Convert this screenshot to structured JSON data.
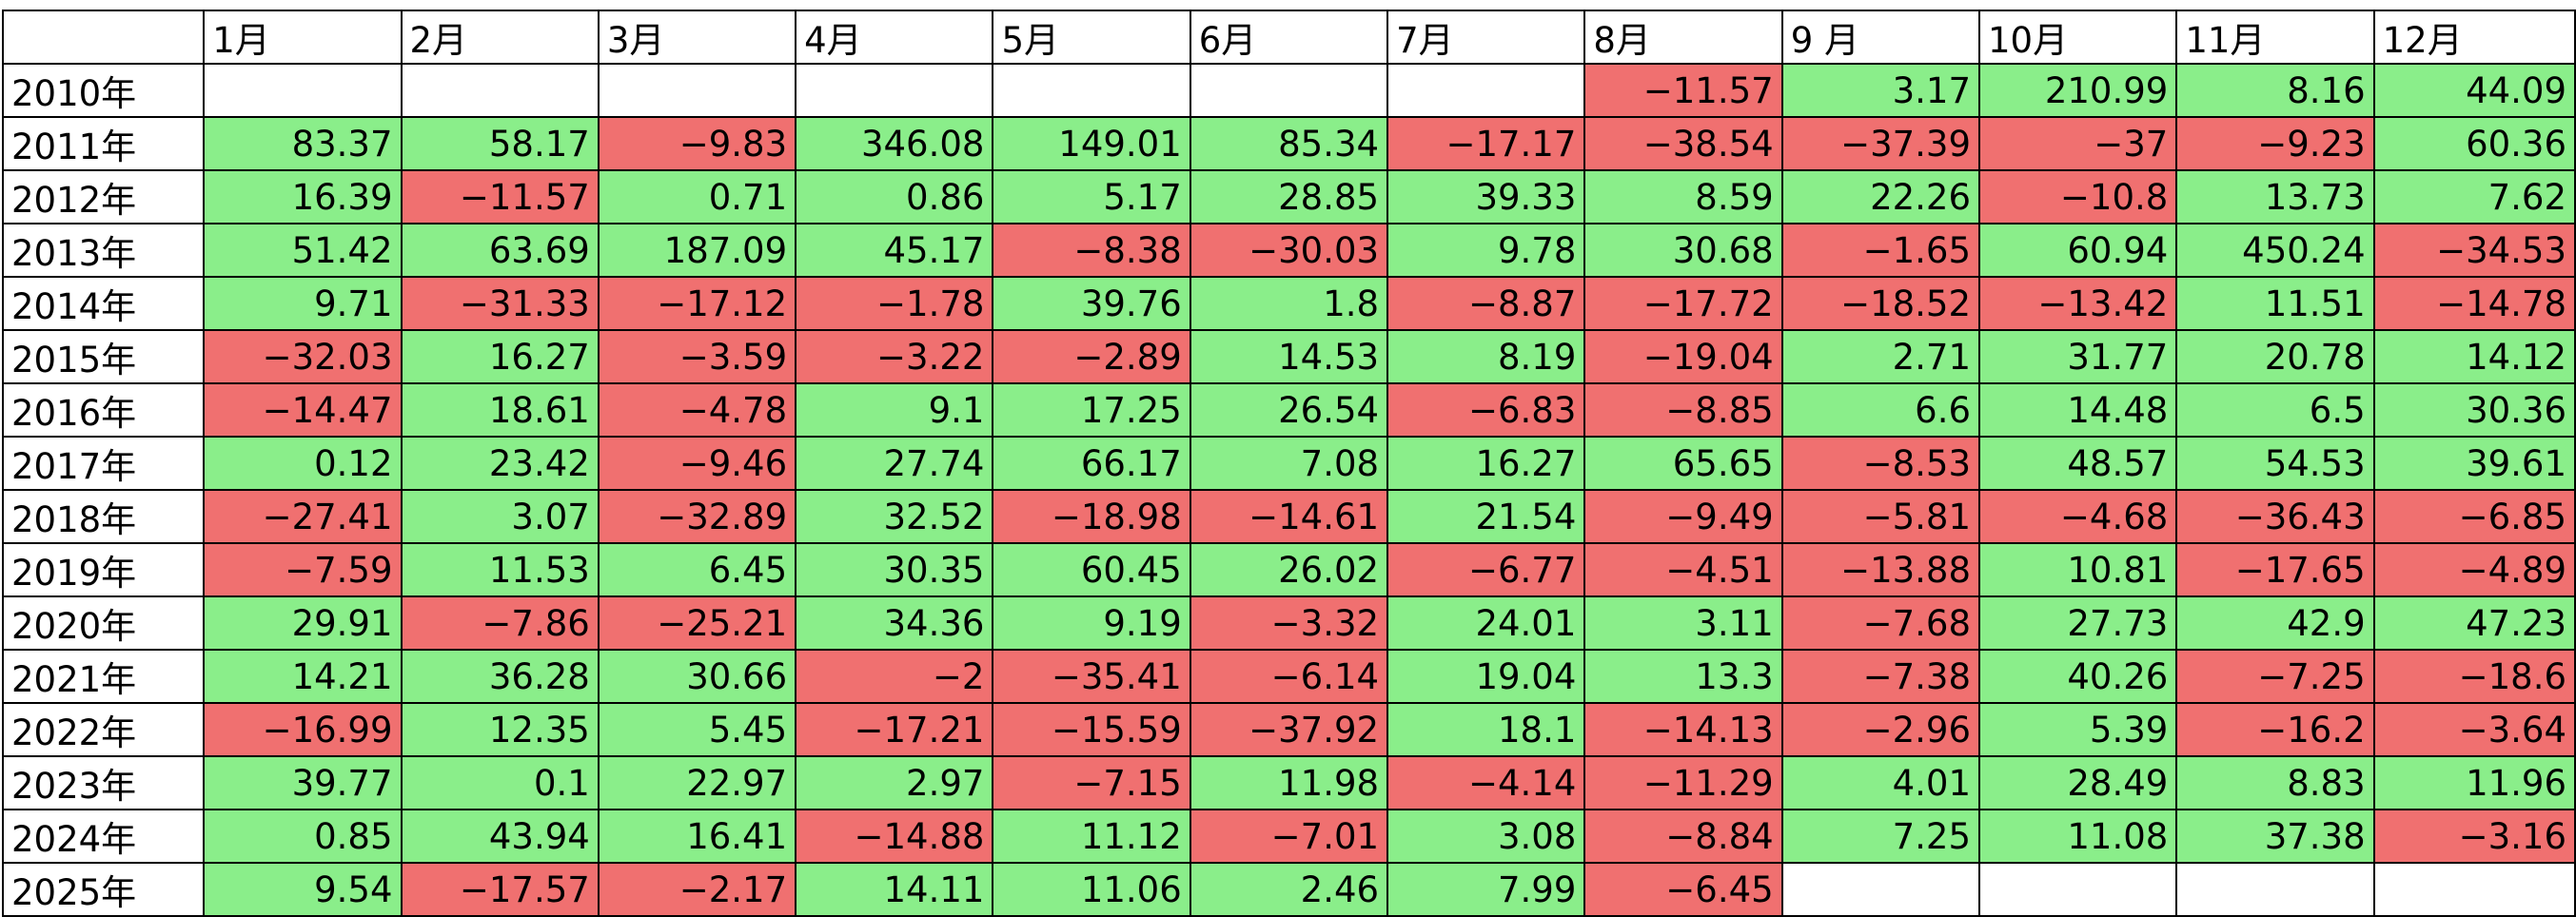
{
  "colors": {
    "positive": "#8aee8a",
    "negative": "#f07070",
    "empty": "#ffffff"
  },
  "chart_data": {
    "type": "heatmap",
    "columns": [
      "1月",
      "2月",
      "3月",
      "4月",
      "5月",
      "6月",
      "7月",
      "8月",
      "9 月",
      "10月",
      "11月",
      "12月"
    ],
    "rows": [
      {
        "label": "2010年",
        "values": [
          null,
          null,
          null,
          null,
          null,
          null,
          null,
          -11.57,
          3.17,
          210.99,
          8.16,
          44.09
        ]
      },
      {
        "label": "2011年",
        "values": [
          83.37,
          58.17,
          -9.83,
          346.08,
          149.01,
          85.34,
          -17.17,
          -38.54,
          -37.39,
          -37,
          -9.23,
          60.36
        ]
      },
      {
        "label": "2012年",
        "values": [
          16.39,
          -11.57,
          0.71,
          0.86,
          5.17,
          28.85,
          39.33,
          8.59,
          22.26,
          -10.8,
          13.73,
          7.62
        ]
      },
      {
        "label": "2013年",
        "values": [
          51.42,
          63.69,
          187.09,
          45.17,
          -8.38,
          -30.03,
          9.78,
          30.68,
          -1.65,
          60.94,
          450.24,
          -34.53
        ]
      },
      {
        "label": "2014年",
        "values": [
          9.71,
          -31.33,
          -17.12,
          -1.78,
          39.76,
          1.8,
          -8.87,
          -17.72,
          -18.52,
          -13.42,
          11.51,
          -14.78
        ]
      },
      {
        "label": "2015年",
        "values": [
          -32.03,
          16.27,
          -3.59,
          -3.22,
          -2.89,
          14.53,
          8.19,
          -19.04,
          2.71,
          31.77,
          20.78,
          14.12
        ]
      },
      {
        "label": "2016年",
        "values": [
          -14.47,
          18.61,
          -4.78,
          9.1,
          17.25,
          26.54,
          -6.83,
          -8.85,
          6.6,
          14.48,
          6.5,
          30.36
        ]
      },
      {
        "label": "2017年",
        "values": [
          0.12,
          23.42,
          -9.46,
          27.74,
          66.17,
          7.08,
          16.27,
          65.65,
          -8.53,
          48.57,
          54.53,
          39.61
        ]
      },
      {
        "label": "2018年",
        "values": [
          -27.41,
          3.07,
          -32.89,
          32.52,
          -18.98,
          -14.61,
          21.54,
          -9.49,
          -5.81,
          -4.68,
          -36.43,
          -6.85
        ]
      },
      {
        "label": "2019年",
        "values": [
          -7.59,
          11.53,
          6.45,
          30.35,
          60.45,
          26.02,
          -6.77,
          -4.51,
          -13.88,
          10.81,
          -17.65,
          -4.89
        ]
      },
      {
        "label": "2020年",
        "values": [
          29.91,
          -7.86,
          -25.21,
          34.36,
          9.19,
          -3.32,
          24.01,
          3.11,
          -7.68,
          27.73,
          42.9,
          47.23
        ]
      },
      {
        "label": "2021年",
        "values": [
          14.21,
          36.28,
          30.66,
          -2,
          -35.41,
          -6.14,
          19.04,
          13.3,
          -7.38,
          40.26,
          -7.25,
          -18.6
        ]
      },
      {
        "label": "2022年",
        "values": [
          -16.99,
          12.35,
          5.45,
          -17.21,
          -15.59,
          -37.92,
          18.1,
          -14.13,
          -2.96,
          5.39,
          -16.2,
          -3.64
        ]
      },
      {
        "label": "2023年",
        "values": [
          39.77,
          0.1,
          22.97,
          2.97,
          -7.15,
          11.98,
          -4.14,
          -11.29,
          4.01,
          28.49,
          8.83,
          11.96
        ]
      },
      {
        "label": "2024年",
        "values": [
          0.85,
          43.94,
          16.41,
          -14.88,
          11.12,
          -7.01,
          3.08,
          -8.84,
          7.25,
          11.08,
          37.38,
          -3.16
        ]
      },
      {
        "label": "2025年",
        "values": [
          9.54,
          -17.57,
          -2.17,
          14.11,
          11.06,
          2.46,
          7.99,
          -6.45,
          null,
          null,
          null,
          null
        ]
      }
    ]
  }
}
